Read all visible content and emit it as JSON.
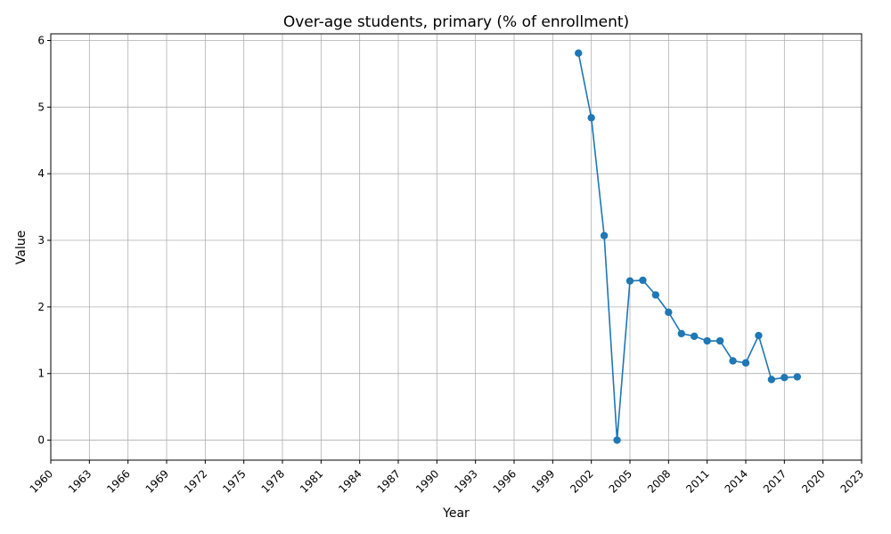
{
  "chart_data": {
    "type": "line",
    "title": "Over-age students, primary (% of enrollment)",
    "xlabel": "Year",
    "ylabel": "Value",
    "xlim": [
      1960,
      2023
    ],
    "ylim": [
      -0.3,
      6.1
    ],
    "xticks": [
      1960,
      1963,
      1966,
      1969,
      1972,
      1975,
      1978,
      1981,
      1984,
      1987,
      1990,
      1993,
      1996,
      1999,
      2002,
      2005,
      2008,
      2011,
      2014,
      2017,
      2020,
      2023
    ],
    "yticks": [
      0,
      1,
      2,
      3,
      4,
      5,
      6
    ],
    "grid": true,
    "series": [
      {
        "x": [
          2001,
          2002,
          2003,
          2004,
          2005,
          2006,
          2007,
          2008,
          2009,
          2010,
          2011,
          2012,
          2013,
          2014,
          2015,
          2016,
          2017,
          2018
        ],
        "values": [
          5.81,
          4.84,
          3.07,
          0.0,
          2.39,
          2.4,
          2.18,
          1.92,
          1.6,
          1.56,
          1.49,
          1.49,
          1.19,
          1.16,
          1.57,
          0.91,
          0.94,
          0.95
        ]
      }
    ],
    "colors": {
      "line": "#1f77b4",
      "grid": "#b0b0b0",
      "axes": "#000000"
    }
  }
}
